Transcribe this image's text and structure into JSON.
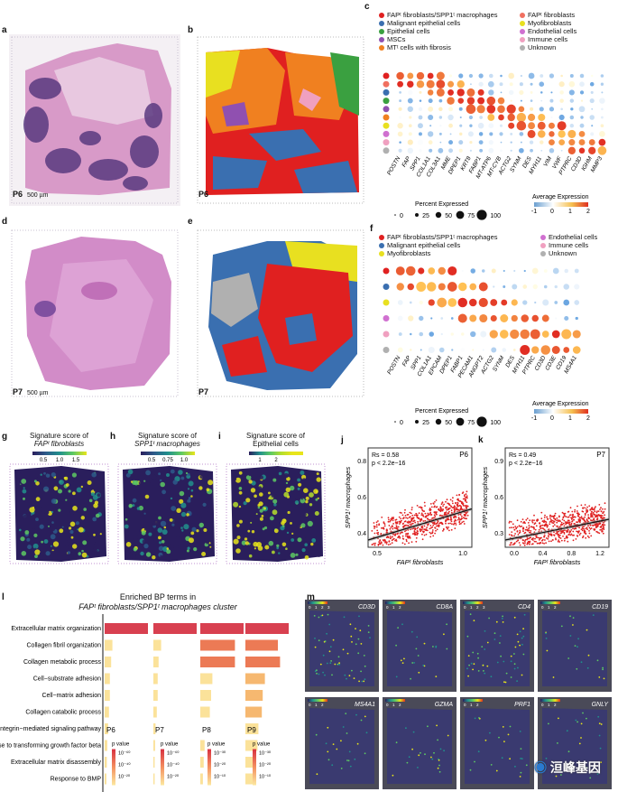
{
  "panels": {
    "a": {
      "letter": "a",
      "sample": "P6",
      "scale": "500 µm"
    },
    "b": {
      "letter": "b",
      "sample": "P6"
    },
    "c": {
      "letter": "c"
    },
    "d": {
      "letter": "d",
      "sample": "P7",
      "scale": "500 µm"
    },
    "e": {
      "letter": "e",
      "sample": "P7"
    },
    "f": {
      "letter": "f"
    },
    "g": {
      "letter": "g",
      "title1": "Signature score of",
      "title2": "FAPᵗ fibroblasts",
      "scale_ticks": [
        "0.5",
        "1.0",
        "1.5"
      ]
    },
    "h": {
      "letter": "h",
      "title1": "Signature score of",
      "title2": "SPP1ᵗ macrophages",
      "scale_ticks": [
        "0.5",
        "0.75",
        "1.0"
      ]
    },
    "i": {
      "letter": "i",
      "title1": "Signature score of",
      "title2": "Epithelial cells",
      "scale_ticks": [
        "1",
        "2"
      ]
    },
    "j": {
      "letter": "j"
    },
    "k": {
      "letter": "k"
    },
    "l": {
      "letter": "l",
      "title1": "Enriched BP terms in",
      "title2": "FAPᵗ fibroblasts/SPP1ᵗ macrophages cluster"
    },
    "m": {
      "letter": "m"
    }
  },
  "legend_c": {
    "left": [
      "FAPᵗ fibroblasts/SPP1ᵗ macrophages",
      "Malignant epithelial cells",
      "Epithelial cells",
      "MSCs",
      "MTᵗ cells with fibrosis"
    ],
    "right": [
      "FAPᵗ fibroblasts",
      "Myofibroblasts",
      "Endothelial cells",
      "Immune cells",
      "Unknown"
    ],
    "left_colors": [
      "#e02020",
      "#3a6fb0",
      "#3aa040",
      "#9050b0",
      "#f08020"
    ],
    "right_colors": [
      "#f07060",
      "#e8e020",
      "#d070d0",
      "#f0a0c0",
      "#b0b0b0"
    ]
  },
  "legend_f": {
    "left": [
      "FAPᵗ fibroblasts/SPP1ᵗ macrophages",
      "Malignant epithelial cells",
      "Myofibroblasts"
    ],
    "right": [
      "Endothelial cells",
      "Immune cells",
      "Unknown"
    ],
    "left_colors": [
      "#e02020",
      "#3a6fb0",
      "#e8e020"
    ],
    "right_colors": [
      "#d070d0",
      "#f0a0c0",
      "#b0b0b0"
    ]
  },
  "dotplot_c": {
    "genes": [
      "POSTN",
      "FAP",
      "SPP1",
      "COL1A1",
      "COL3A1",
      "MME",
      "DPEP1",
      "KRT8",
      "FABP1",
      "MT-ATP6",
      "MT-CYB",
      "ACTG2",
      "SYNM",
      "DES",
      "MYH11",
      "VIM",
      "VWF",
      "PTPRC",
      "CD3D",
      "IGHM",
      "MMP3"
    ],
    "row_colors": [
      "#e02020",
      "#f07060",
      "#3a6fb0",
      "#3aa040",
      "#9050b0",
      "#f08020",
      "#e8e020",
      "#d070d0",
      "#f0a0c0",
      "#b0b0b0"
    ],
    "legend_title": "Percent Expressed",
    "legend_sizes": [
      "0",
      "25",
      "50",
      "75",
      "100"
    ],
    "avg_title": "Average Expression",
    "avg_ticks": [
      "-1",
      "0",
      "1",
      "2"
    ]
  },
  "dotplot_f": {
    "genes": [
      "POSTN",
      "FAP",
      "SPP1",
      "COL1A1",
      "EPCAM",
      "DPEP1",
      "FABP1",
      "PECAM1",
      "ANGPT2",
      "ACTG2",
      "SYNM",
      "DES",
      "MYH11",
      "PTPRC",
      "CD3D",
      "CD3E",
      "CD19",
      "MS4A1"
    ],
    "row_colors": [
      "#e02020",
      "#3a6fb0",
      "#e8e020",
      "#d070d0",
      "#f0a0c0",
      "#b0b0b0"
    ],
    "legend_title": "Percent Expressed",
    "legend_sizes": [
      "0",
      "25",
      "50",
      "75",
      "100"
    ],
    "avg_title": "Average Expression",
    "avg_ticks": [
      "-1",
      "0",
      "1",
      "2"
    ]
  },
  "scatter_j": {
    "rs": "Rs = 0.58",
    "p": "p < 2.2e−16",
    "sample": "P6",
    "xlabel": "FAPᵗ fibroblasts",
    "ylabel": "SPP1ᵗ macrophages",
    "xticks": [
      "0.5",
      "1.0"
    ],
    "yticks": [
      "0.4",
      "0.6",
      "0.8"
    ]
  },
  "scatter_k": {
    "rs": "Rs = 0.49",
    "p": "p < 2.2e−16",
    "sample": "P7",
    "xlabel": "FAPᵗ fibroblasts",
    "ylabel": "SPP1ᵗ macrophages",
    "xticks": [
      "0.0",
      "0.4",
      "0.8",
      "1.2"
    ],
    "yticks": [
      "0.3",
      "0.6",
      "0.9"
    ]
  },
  "bp_terms": [
    "Extracellular matrix organization",
    "Collagen fibril organization",
    "Collagen metabolic process",
    "Cell−substrate adhesion",
    "Cell−matrix adhesion",
    "Collagen catabolic process",
    "Integrin−mediated signaling pathway",
    "Response to transforming growth factor beta",
    "Extracellular matrix disassembly",
    "Response to BMP"
  ],
  "bp_samples": [
    {
      "name": "P6",
      "legend": "p value",
      "ticks": [
        "10⁻⁶⁰",
        "10⁻⁴⁰",
        "10⁻²⁰"
      ]
    },
    {
      "name": "P7",
      "legend": "p value",
      "ticks": [
        "10⁻⁶⁰",
        "10⁻⁴⁰",
        "10⁻²⁰"
      ]
    },
    {
      "name": "P8",
      "legend": "p value",
      "ticks": [
        "10⁻³⁰",
        "10⁻²⁰",
        "10⁻¹⁰"
      ]
    },
    {
      "name": "P9",
      "legend": "p value",
      "ticks": [
        "10⁻³⁰",
        "10⁻²⁰",
        "10⁻¹⁰"
      ]
    }
  ],
  "bp_values": [
    [
      1.0,
      1.0,
      1.0,
      1.0
    ],
    [
      0.18,
      0.18,
      0.8,
      0.75
    ],
    [
      0.15,
      0.12,
      0.8,
      0.8
    ],
    [
      0.12,
      0.1,
      0.28,
      0.45
    ],
    [
      0.12,
      0.1,
      0.25,
      0.4
    ],
    [
      0.1,
      0.08,
      0.22,
      0.38
    ],
    [
      0.08,
      0.05,
      0.0,
      0.3
    ],
    [
      0.06,
      0.04,
      0.1,
      0.28
    ],
    [
      0.05,
      0.03,
      0.08,
      0.25
    ],
    [
      0.04,
      0.03,
      0.06,
      0.22
    ]
  ],
  "m_genes": [
    "CD3D",
    "CD8A",
    "CD4",
    "CD19",
    "MS4A1",
    "GZMA",
    "PRF1",
    "GNLY"
  ],
  "m_ticks": [
    "0",
    "1",
    "2",
    "3"
  ],
  "watermark": "洹峰基因"
}
